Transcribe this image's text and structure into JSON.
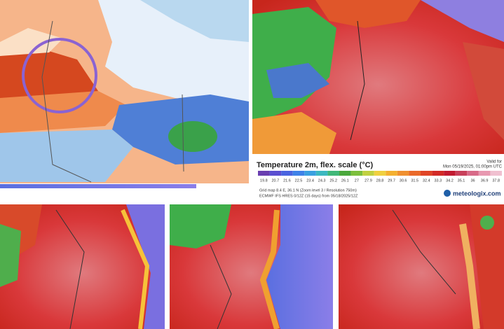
{
  "legend": {
    "title": "Temperature 2m, flex. scale (°C)",
    "valid_label": "Valid for",
    "valid_time": "Mon 05/19/2025, 01:00pm UTC",
    "scale": [
      19.8,
      20.7,
      21.6,
      22.5,
      23.4,
      24.3,
      25.2,
      26.1,
      27,
      27.9,
      28.8,
      29.7,
      30.6,
      31.5,
      32.4,
      33.3,
      34.2,
      35.1,
      36,
      36.9,
      37.8
    ],
    "grid_info": "Grid map 8.4 E, 36.1 N (Zoom level 3 / Resolution 750m)",
    "model_info": "ECMWF IFS HRES 0/12Z (15 days) from 05/18/2025/12Z",
    "brand": "meteologix.com"
  }
}
